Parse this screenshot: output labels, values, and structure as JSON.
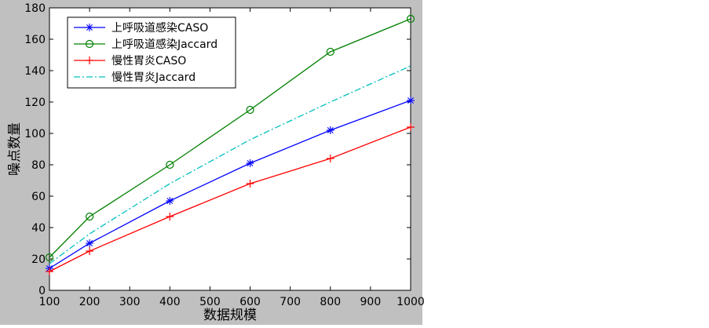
{
  "chart_data": {
    "type": "line",
    "title": "",
    "xlabel": "数据规模",
    "ylabel": "噪点数量",
    "xlim": [
      100,
      1000
    ],
    "ylim": [
      0,
      180
    ],
    "x_ticks": [
      100,
      200,
      300,
      400,
      500,
      600,
      700,
      800,
      900,
      1000
    ],
    "y_ticks": [
      0,
      20,
      40,
      60,
      80,
      100,
      120,
      140,
      160,
      180
    ],
    "grid": false,
    "legend_position": "top-left",
    "x": [
      100,
      200,
      400,
      600,
      800,
      1000
    ],
    "series": [
      {
        "name": "上呼吸道感染CASO",
        "values": [
          14,
          30,
          57,
          81,
          102,
          121
        ],
        "color": "#0000ff",
        "line_style": "solid",
        "marker": "asterisk"
      },
      {
        "name": "上呼吸道感染Jaccard",
        "values": [
          21,
          47,
          80,
          115,
          152,
          173
        ],
        "color": "#008000",
        "line_style": "solid",
        "marker": "circle"
      },
      {
        "name": "慢性胃炎CASO",
        "values": [
          12,
          25,
          47,
          68,
          84,
          104
        ],
        "color": "#ff0000",
        "line_style": "solid",
        "marker": "plus"
      },
      {
        "name": "慢性胃炎Jaccard",
        "values": [
          17,
          36,
          68,
          96,
          120,
          143
        ],
        "color": "#00bfbf",
        "line_style": "dashdot",
        "marker": "none"
      }
    ]
  }
}
